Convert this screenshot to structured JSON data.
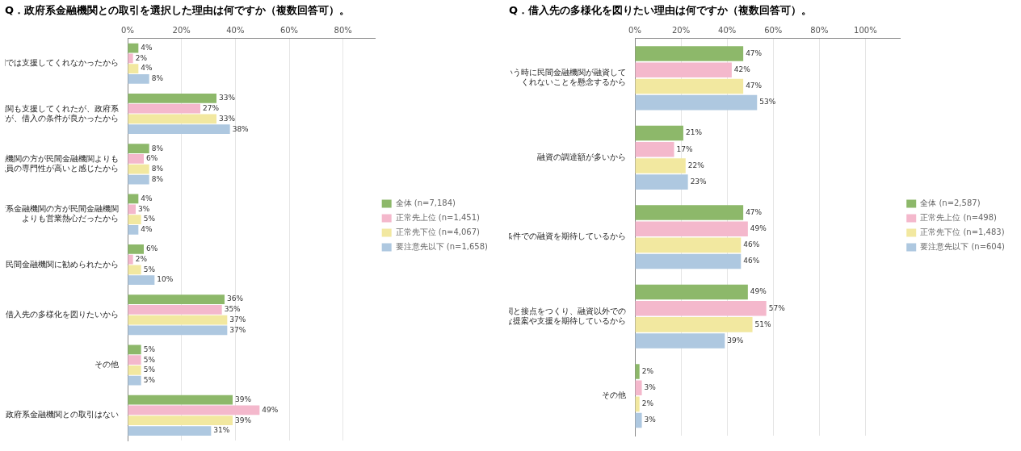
{
  "chart_data": [
    {
      "type": "bar",
      "orientation": "horizontal",
      "title": "Q．政府系金融機関との取引を選択した理由は何ですか（複数回答可）。",
      "categories": [
        "民間金融機関では支援してくれなかったから",
        "民間金融機関も支援してくれたが、政府系\n金融機関の方が、借入の条件が良かったから",
        "政府系金融機関の方が民間金融機関よりも\n職員の専門性が高いと感じたから",
        "政府系金融機関の方が民間金融機関\nよりも営業熱心だったから",
        "民間金融機関に勧められたから",
        "借入先の多様化を図りたいから",
        "その他",
        "政府系金融機関との取引はない"
      ],
      "series": [
        {
          "name": "全体 (n=7,184)",
          "color": "#8db86a",
          "values": [
            4,
            33,
            8,
            4,
            6,
            36,
            5,
            39
          ],
          "value_labels": [
            "4%",
            "33%",
            "8%",
            "4%",
            "6%",
            "36%",
            "5%",
            "39%"
          ]
        },
        {
          "name": "正常先上位 (n=1,451)",
          "color": "#f4b8cc",
          "values": [
            2,
            27,
            6,
            3,
            2,
            35,
            5,
            49
          ],
          "value_labels": [
            "2%",
            "27%",
            "6%",
            "3%",
            "2%",
            "35%",
            "5%",
            "49%"
          ]
        },
        {
          "name": "正常先下位 (n=4,067)",
          "color": "#f2e8a0",
          "values": [
            4,
            33,
            8,
            5,
            5,
            37,
            5,
            39
          ],
          "value_labels": [
            "4%",
            "33%",
            "8%",
            "5%",
            "5%",
            "37%",
            "5%",
            "39%"
          ]
        },
        {
          "name": "要注意先以下 (n=1,658)",
          "color": "#aec8e0",
          "values": [
            8,
            38,
            8,
            4,
            10,
            37,
            5,
            31
          ],
          "value_labels": [
            "8%",
            "38%",
            "8%",
            "4%",
            "10%",
            "37%",
            "5%",
            "31%"
          ]
        }
      ],
      "xlim": [
        0,
        92
      ],
      "xticks": [
        {
          "value": 0,
          "label": "0%"
        },
        {
          "value": 20,
          "label": "20%"
        },
        {
          "value": 40,
          "label": "40%"
        },
        {
          "value": 60,
          "label": "60%"
        },
        {
          "value": 80,
          "label": "80%"
        }
      ],
      "grid": true,
      "legend": "right",
      "data_labels": true
    },
    {
      "type": "bar",
      "orientation": "horizontal",
      "title": "Q．借入先の多様化を図りたい理由は何ですか（複数回答可）。",
      "categories": [
        "いざという時に民間金融機関が融資して\nくれないことを懸念するから",
        "融資の調達額が多いから",
        "より良い融資条件での融資を期待しているから",
        "より多くの金融機関と接点をつくり、融資以外での\n有益な提案や支援を期待しているから",
        "その他"
      ],
      "series": [
        {
          "name": "全体 (n=2,587)",
          "color": "#8db86a",
          "values": [
            47,
            21,
            47,
            49,
            2
          ],
          "value_labels": [
            "47%",
            "21%",
            "47%",
            "49%",
            "2%"
          ]
        },
        {
          "name": "正常先上位 (n=498)",
          "color": "#f4b8cc",
          "values": [
            42,
            17,
            49,
            57,
            3
          ],
          "value_labels": [
            "42%",
            "17%",
            "49%",
            "57%",
            "3%"
          ]
        },
        {
          "name": "正常先下位 (n=1,483)",
          "color": "#f2e8a0",
          "values": [
            47,
            22,
            46,
            51,
            2
          ],
          "value_labels": [
            "47%",
            "22%",
            "46%",
            "51%",
            "2%"
          ]
        },
        {
          "name": "要注意先以下 (n=604)",
          "color": "#aec8e0",
          "values": [
            53,
            23,
            46,
            39,
            3
          ],
          "value_labels": [
            "53%",
            "23%",
            "46%",
            "39%",
            "3%"
          ]
        }
      ],
      "xlim": [
        0,
        115
      ],
      "xticks": [
        {
          "value": 0,
          "label": "0%"
        },
        {
          "value": 20,
          "label": "20%"
        },
        {
          "value": 40,
          "label": "40%"
        },
        {
          "value": 60,
          "label": "60%"
        },
        {
          "value": 80,
          "label": "80%"
        },
        {
          "value": 100,
          "label": "100%"
        }
      ],
      "grid": true,
      "legend": "right",
      "data_labels": true
    }
  ]
}
